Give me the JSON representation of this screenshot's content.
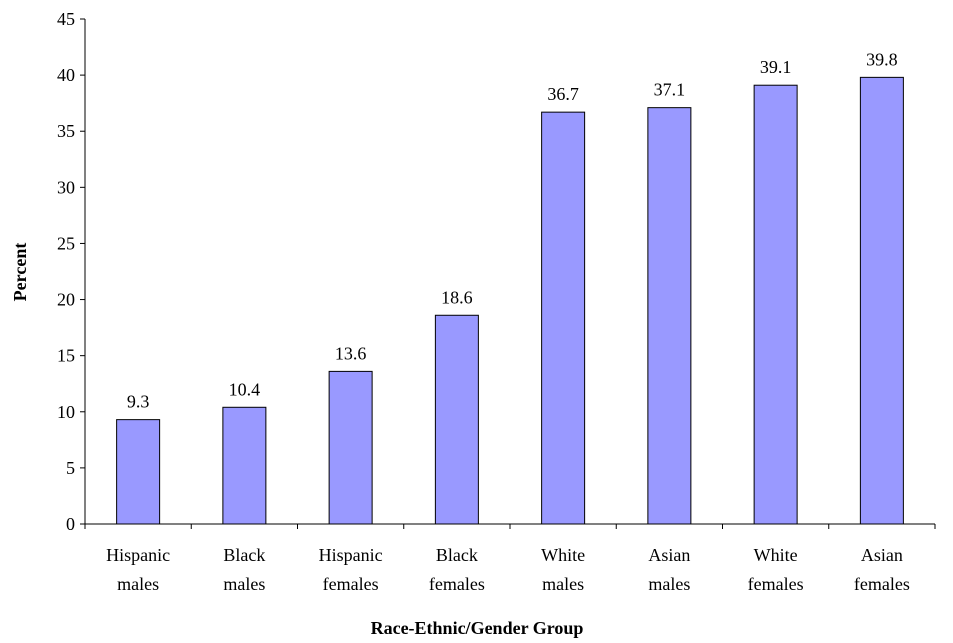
{
  "chart_data": {
    "type": "bar",
    "title": "",
    "xlabel": "Race-Ethnic/Gender Group",
    "ylabel": "Percent",
    "ylim": [
      0,
      45
    ],
    "yticks": [
      0,
      5,
      10,
      15,
      20,
      25,
      30,
      35,
      40,
      45
    ],
    "categories": [
      [
        "Hispanic",
        "males"
      ],
      [
        "Black",
        "males"
      ],
      [
        "Hispanic",
        "females"
      ],
      [
        "Black",
        "females"
      ],
      [
        "White",
        "males"
      ],
      [
        "Asian",
        "males"
      ],
      [
        "White",
        "females"
      ],
      [
        "Asian",
        "females"
      ]
    ],
    "values": [
      9.3,
      10.4,
      13.6,
      18.6,
      36.7,
      37.1,
      39.1,
      39.8
    ],
    "value_labels": [
      "9.3",
      "10.4",
      "13.6",
      "18.6",
      "36.7",
      "37.1",
      "39.1",
      "39.8"
    ],
    "grid": false,
    "legend": "none",
    "bar_color": "#9999ff",
    "bar_outline": "#000000"
  }
}
